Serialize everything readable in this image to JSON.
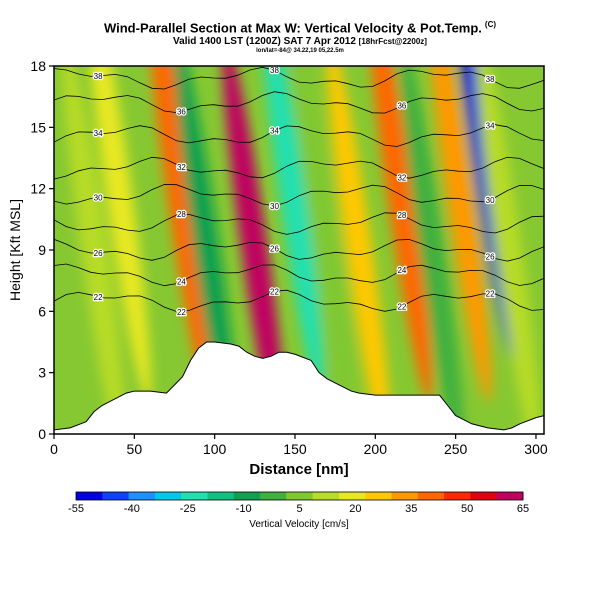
{
  "header": {
    "title": "Wind-Parallel Section at Max W: Vertical Velocity & Pot.Temp.",
    "title_mark": "(C)",
    "valid": "Valid 1400 LST (1200Z) SAT 7 Apr 2012",
    "forecast": "[18hrFcst@2200z]",
    "location": "lon/lat=-84@ 34.22,19 05,22.5m"
  },
  "chart_data": {
    "type": "heatmap",
    "title": "Wind-Parallel Section at Max W: Vertical Velocity & Pot.Temp.",
    "xlabel": "Distance [nm]",
    "ylabel": "Height [Kft MSL]",
    "xlim": [
      0,
      305
    ],
    "ylim": [
      0,
      18
    ],
    "x_ticks": [
      0,
      50,
      100,
      150,
      200,
      250,
      300
    ],
    "y_ticks": [
      0,
      3,
      6,
      9,
      12,
      15,
      18
    ],
    "colorbar": {
      "label": "Vertical Velocity [cm/s]",
      "ticks": [
        -55,
        -40,
        -25,
        -10,
        5,
        20,
        35,
        50,
        65
      ],
      "range": [
        -55,
        65
      ],
      "colors": [
        "#0000e0",
        "#1040ff",
        "#1e90ff",
        "#00c8e8",
        "#20e0b0",
        "#10c080",
        "#10a050",
        "#40b040",
        "#80c830",
        "#b8dc28",
        "#e8e820",
        "#ffc800",
        "#ff9800",
        "#ff6600",
        "#ff2800",
        "#e00010",
        "#c00060"
      ]
    },
    "velocity_bands": [
      {
        "center_nm": 25,
        "center_kft": 9,
        "value": 12
      },
      {
        "center_nm": 40,
        "center_kft": 12,
        "value": 20
      },
      {
        "center_nm": 78,
        "center_kft": 12,
        "value": 42
      },
      {
        "center_nm": 95,
        "center_kft": 9,
        "value": -6
      },
      {
        "center_nm": 125,
        "center_kft": 9,
        "value": 62
      },
      {
        "center_nm": 148,
        "center_kft": 12,
        "value": -22
      },
      {
        "center_nm": 170,
        "center_kft": 9,
        "value": 2
      },
      {
        "center_nm": 190,
        "center_kft": 9,
        "value": 25
      },
      {
        "center_nm": 215,
        "center_kft": 12,
        "value": 38
      },
      {
        "center_nm": 235,
        "center_kft": 9,
        "value": -5
      },
      {
        "center_nm": 252,
        "center_kft": 12,
        "value": 35
      },
      {
        "center_nm": 268,
        "center_kft": 14,
        "value": -55
      },
      {
        "center_nm": 283,
        "center_kft": 9,
        "value": 15
      }
    ],
    "isentropes": [
      {
        "label": "22",
        "height_kft": 6.5
      },
      {
        "label": "24",
        "height_kft": 7.8
      },
      {
        "label": "26",
        "height_kft": 9.0
      },
      {
        "label": "28",
        "height_kft": 10.3
      },
      {
        "label": "30",
        "height_kft": 11.7
      },
      {
        "label": "32",
        "height_kft": 13.0
      },
      {
        "label": "34",
        "height_kft": 14.6
      },
      {
        "label": "36",
        "height_kft": 16.2
      },
      {
        "label": "38",
        "height_kft": 17.4
      }
    ],
    "terrain": {
      "distance_nm": [
        0,
        10,
        20,
        25,
        30,
        35,
        40,
        45,
        50,
        60,
        70,
        80,
        85,
        90,
        95,
        100,
        110,
        115,
        120,
        125,
        130,
        135,
        140,
        145,
        150,
        160,
        165,
        170,
        175,
        180,
        185,
        190,
        200,
        210,
        220,
        230,
        240,
        245,
        250,
        260,
        270,
        280,
        285,
        290,
        300,
        305
      ],
      "height_kft": [
        0.2,
        0.3,
        0.6,
        1.1,
        1.4,
        1.6,
        1.8,
        2.0,
        2.1,
        2.1,
        2.0,
        2.8,
        3.6,
        4.2,
        4.5,
        4.5,
        4.4,
        4.3,
        4.0,
        3.8,
        3.7,
        3.8,
        4.0,
        4.0,
        3.9,
        3.6,
        3.0,
        2.7,
        2.5,
        2.3,
        2.1,
        2.0,
        1.9,
        1.9,
        1.9,
        1.9,
        1.9,
        1.4,
        0.9,
        0.5,
        0.3,
        0.2,
        0.3,
        0.5,
        0.8,
        0.9
      ]
    }
  }
}
